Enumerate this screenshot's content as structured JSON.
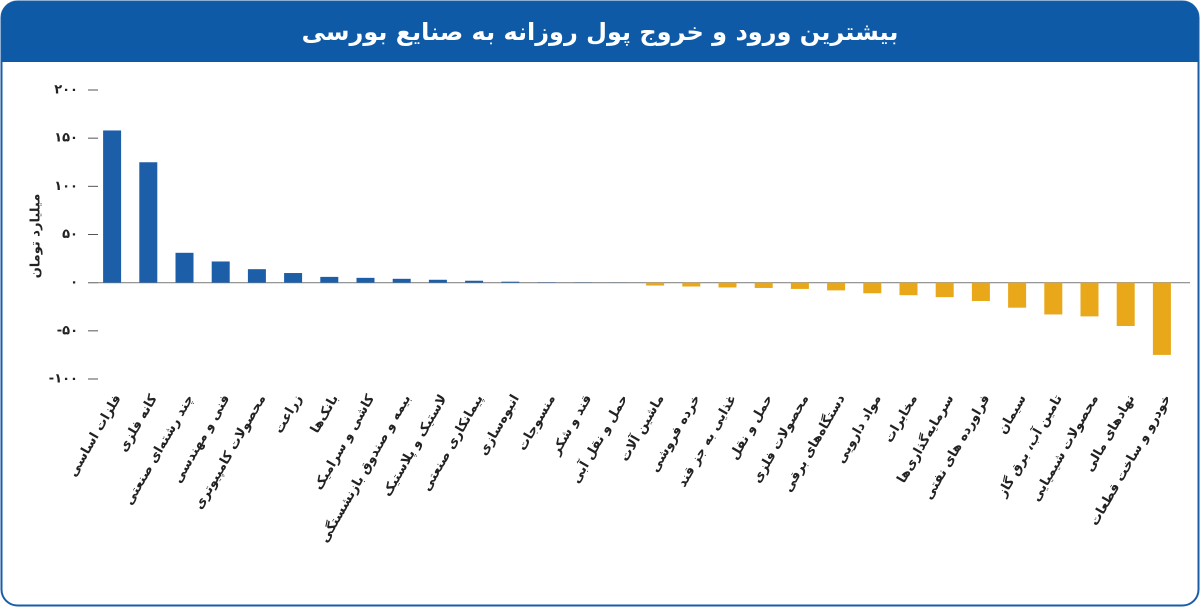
{
  "chart_data": {
    "type": "bar",
    "title": "بیشترین ورود و خروج پول روزانه به صنایع بورسی",
    "y_label": "میلیارد تومان",
    "categories": [
      "فلزات اساسی",
      "کانه فلزی",
      "چند رشته‌ای صنعتی",
      "فنی و مهندسی",
      "محصولات کامپیوتری",
      "زراعت",
      "بانک‌ها",
      "کاشی و سرامیک",
      "بیمه و صندوق بازنشستگی",
      "لاستیک و پلاستیک",
      "پیمانکاری صنعتی",
      "انبوه‌سازی",
      "منسوجات",
      "قند و شکر",
      "حمل و نقل آبی",
      "ماشین آلات",
      "خرده فروشی",
      "غذایی به جز قند",
      "حمل و نقل",
      "محصولات فلزی",
      "دستگاه‌های برقی",
      "مواد دارویی",
      "مخابرات",
      "سرمایه‌گذاری‌ها",
      "فراورده های نفتی",
      "سیمان",
      "تامین آب، برق گاز",
      "محصولات شیمیایی",
      "نهادهای مالی",
      "خودرو و ساخت قطعات"
    ],
    "values": [
      158,
      125,
      31,
      22,
      14,
      10,
      6,
      5,
      4,
      3,
      2,
      1,
      0.3,
      0.2,
      0.1,
      -3,
      -4,
      -5,
      -5.5,
      -6.5,
      -8,
      -11,
      -13,
      -15,
      -19,
      -26,
      -33,
      -35,
      -45,
      -75
    ],
    "color_positive": "#1d5ea8",
    "color_negative": "#e9a81a",
    "ylim": [
      -100,
      200
    ],
    "yticks": [
      {
        "value": -100,
        "label": "-۱۰۰"
      },
      {
        "value": -50,
        "label": "-۵۰"
      },
      {
        "value": 0,
        "label": "۰"
      },
      {
        "value": 50,
        "label": "۵۰"
      },
      {
        "value": 100,
        "label": "۱۰۰"
      },
      {
        "value": 150,
        "label": "۱۵۰"
      },
      {
        "value": 200,
        "label": "۲۰۰"
      }
    ]
  }
}
